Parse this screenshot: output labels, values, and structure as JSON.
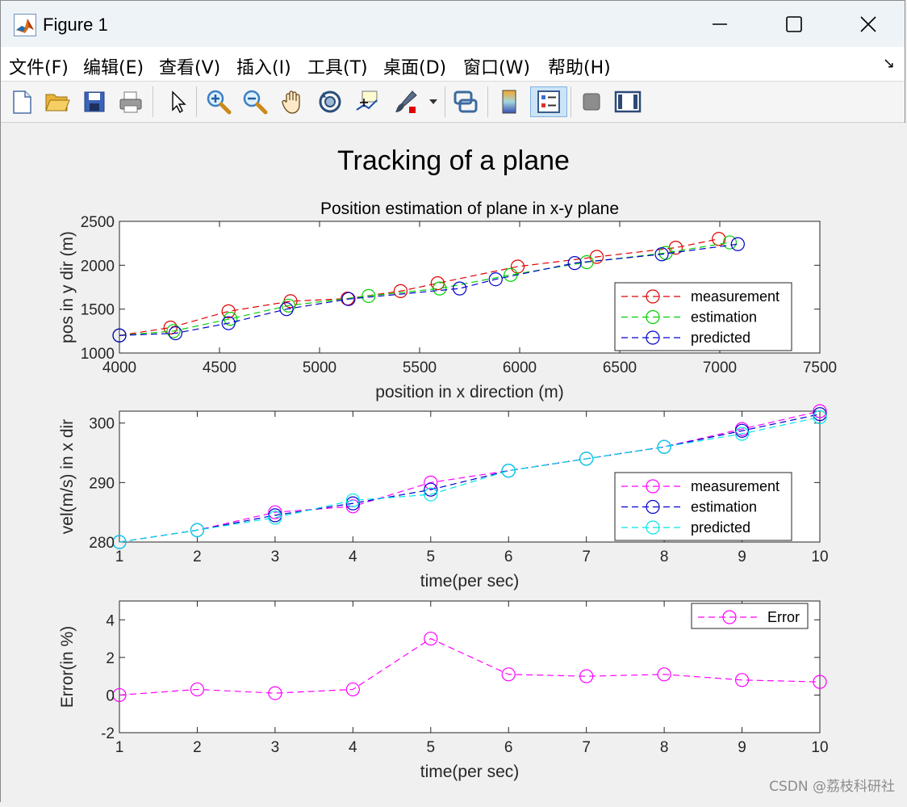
{
  "window": {
    "title": "Figure 1"
  },
  "menu": [
    "文件(F)",
    "编辑(E)",
    "查看(V)",
    "插入(I)",
    "工具(T)",
    "桌面(D)",
    "窗口(W)",
    "帮助(H)"
  ],
  "toolbar_icons": [
    "new-figure-icon",
    "open-file-icon",
    "save-icon",
    "print-icon",
    "edit-plot-arrow-icon",
    "zoom-in-icon",
    "zoom-out-icon",
    "pan-hand-icon",
    "rotate-3d-icon",
    "data-cursor-icon",
    "brush-icon",
    "brush-dropdown-icon",
    "link-plot-icon",
    "colorbar-icon",
    "legend-icon",
    "hide-plot-tools-icon",
    "show-plot-tools-icon"
  ],
  "figure": {
    "suptitle": "Tracking of a plane"
  },
  "watermark": "CSDN @荔枝科研社",
  "colors": {
    "measurement_red": "#e00000",
    "estimation_green": "#00d000",
    "predicted_blue": "#0000cc",
    "measurement_magenta": "#ff00ff",
    "predicted_cyan": "#00e5e5"
  },
  "chart_data": [
    {
      "type": "line",
      "title": "Position estimation of plane in x-y plane",
      "xlabel": "position in x direction (m)",
      "ylabel": "pos in y dir (m)",
      "xlim": [
        4000,
        7500
      ],
      "ylim": [
        1000,
        2500
      ],
      "xticks": [
        "4000",
        "4500",
        "5000",
        "5500",
        "6000",
        "6500",
        "7000",
        "7500"
      ],
      "yticks": [
        "1000",
        "1500",
        "2000",
        "2500"
      ],
      "legend": "bottom-right",
      "series": [
        {
          "name": "measurement",
          "color": "#e00000",
          "x": [
            4000,
            4255,
            4545,
            4855,
            5140,
            5405,
            5590,
            5990,
            6385,
            6780,
            6995
          ],
          "y": [
            1200,
            1290,
            1475,
            1590,
            1620,
            1705,
            1795,
            1985,
            2095,
            2200,
            2300
          ]
        },
        {
          "name": "estimation",
          "color": "#00d000",
          "x": [
            4000,
            4270,
            4555,
            4845,
            5245,
            5600,
            5955,
            6335,
            6730,
            7050
          ],
          "y": [
            1200,
            1250,
            1390,
            1540,
            1650,
            1735,
            1890,
            2035,
            2140,
            2260
          ]
        },
        {
          "name": "predicted",
          "color": "#0000cc",
          "x": [
            4000,
            4280,
            4545,
            4835,
            5145,
            5700,
            5880,
            6275,
            6710,
            7090
          ],
          "y": [
            1200,
            1225,
            1340,
            1500,
            1615,
            1735,
            1840,
            2025,
            2125,
            2240
          ]
        }
      ]
    },
    {
      "type": "line",
      "title": "",
      "xlabel": "time(per sec)",
      "ylabel": "vel(m/s) in x dir",
      "xlim": [
        1,
        10
      ],
      "ylim": [
        280,
        302
      ],
      "xticks": [
        "1",
        "2",
        "3",
        "4",
        "5",
        "6",
        "7",
        "8",
        "9",
        "10"
      ],
      "yticks": [
        "280",
        "290",
        "300"
      ],
      "legend": "bottom-right",
      "series": [
        {
          "name": "measurement",
          "color": "#ff00ff",
          "x": [
            1,
            2,
            3,
            4,
            5,
            6,
            7,
            8,
            9,
            10
          ],
          "y": [
            280,
            282,
            285,
            286,
            290,
            292,
            294,
            296,
            299,
            302
          ]
        },
        {
          "name": "estimation",
          "color": "#0000cc",
          "x": [
            1,
            2,
            3,
            4,
            5,
            6,
            7,
            8,
            9,
            10
          ],
          "y": [
            280,
            282,
            284.5,
            286.5,
            288.8,
            292,
            294,
            296,
            298.7,
            301.5
          ]
        },
        {
          "name": "predicted",
          "color": "#00e5e5",
          "x": [
            1,
            2,
            3,
            4,
            5,
            6,
            7,
            8,
            9,
            10
          ],
          "y": [
            280,
            282,
            284.1,
            287,
            288,
            292,
            294,
            296,
            298.2,
            301
          ]
        }
      ]
    },
    {
      "type": "line",
      "title": "",
      "xlabel": "time(per sec)",
      "ylabel": "Error(in %)",
      "xlim": [
        1,
        10
      ],
      "ylim": [
        -2,
        5
      ],
      "xticks": [
        "1",
        "2",
        "3",
        "4",
        "5",
        "6",
        "7",
        "8",
        "9",
        "10"
      ],
      "yticks": [
        "-2",
        "0",
        "2",
        "4"
      ],
      "legend": "top-right",
      "series": [
        {
          "name": "Error",
          "color": "#ff00ff",
          "x": [
            1,
            2,
            3,
            4,
            5,
            6,
            7,
            8,
            9,
            10
          ],
          "y": [
            0,
            0.3,
            0.1,
            0.3,
            3,
            1.1,
            1.0,
            1.1,
            0.8,
            0.7
          ]
        }
      ]
    }
  ]
}
